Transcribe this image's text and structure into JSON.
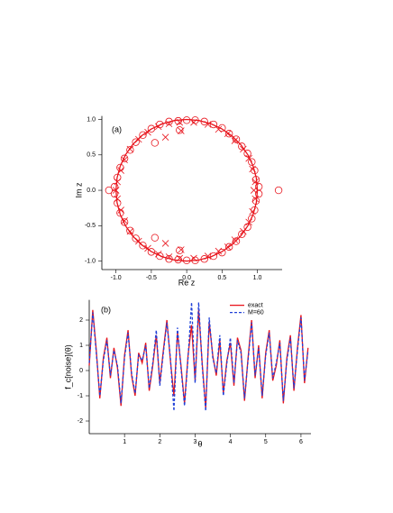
{
  "chart_data": [
    {
      "type": "scatter",
      "panel_label": "(a)",
      "x_label": "Re z",
      "y_label": "Im z",
      "xlim": [
        -1.2,
        1.35
      ],
      "ylim": [
        -1.12,
        1.05
      ],
      "xticks": [
        {
          "value": -1.0,
          "label": "-1.0"
        },
        -0.5,
        {
          "value": 0.0,
          "label": "0.0"
        },
        0.5,
        {
          "value": 1.0,
          "label": "1.0"
        }
      ],
      "yticks": [
        {
          "value": -1.0,
          "label": "-1.0"
        },
        -0.5,
        {
          "value": 0.0,
          "label": "0.0"
        },
        0.5,
        {
          "value": 1.0,
          "label": "1.0"
        }
      ],
      "series": [
        {
          "marker": "circle",
          "color": "#e8141c",
          "x": [
            0.0,
            0.12,
            0.25,
            0.38,
            0.5,
            0.6,
            0.7,
            0.78,
            0.86,
            0.92,
            0.96,
            0.98,
            1.02,
            -0.12,
            -0.25,
            -0.38,
            -0.5,
            -0.62,
            -0.72,
            -0.8,
            -0.88,
            -0.94,
            -0.98,
            -1.02,
            -0.45,
            -0.1,
            1.3,
            -1.1,
            0.0,
            0.12,
            0.25,
            0.38,
            0.5,
            0.6,
            0.7,
            0.78,
            0.86,
            0.92,
            0.96,
            0.98,
            1.02,
            -0.12,
            -0.25,
            -0.38,
            -0.5,
            -0.62,
            -0.72,
            -0.8,
            -0.88,
            -0.94,
            -0.98,
            -1.02,
            -0.45,
            -0.1
          ],
          "y": [
            0.99,
            0.99,
            0.97,
            0.93,
            0.88,
            0.8,
            0.72,
            0.62,
            0.52,
            0.4,
            0.28,
            0.15,
            0.05,
            0.98,
            0.97,
            0.93,
            0.87,
            0.78,
            0.68,
            0.57,
            0.45,
            0.32,
            0.18,
            0.05,
            0.67,
            0.85,
            0.0,
            0.0,
            -0.99,
            -0.99,
            -0.97,
            -0.93,
            -0.88,
            -0.8,
            -0.72,
            -0.62,
            -0.52,
            -0.4,
            -0.28,
            -0.15,
            -0.05,
            -0.98,
            -0.97,
            -0.93,
            -0.87,
            -0.78,
            -0.68,
            -0.57,
            -0.45,
            -0.32,
            -0.18,
            -0.05,
            -0.67,
            -0.85
          ]
        },
        {
          "marker": "cross",
          "color": "#e8141c",
          "x": [
            0.1,
            0.3,
            0.45,
            0.58,
            0.68,
            0.8,
            0.88,
            0.93,
            0.97,
            -0.1,
            -0.25,
            -0.4,
            -0.55,
            -0.68,
            -0.8,
            -0.88,
            -0.93,
            -0.98,
            -0.3,
            -0.08,
            0.95,
            -1.0,
            0.1,
            0.3,
            0.45,
            0.58,
            0.68,
            0.8,
            0.88,
            0.93,
            0.97,
            -0.1,
            -0.25,
            -0.4,
            -0.55,
            -0.68,
            -0.8,
            -0.88,
            -0.93,
            -0.98,
            -0.3,
            -0.08
          ],
          "y": [
            0.96,
            0.93,
            0.86,
            0.8,
            0.7,
            0.58,
            0.45,
            0.3,
            0.12,
            0.96,
            0.94,
            0.9,
            0.82,
            0.72,
            0.58,
            0.43,
            0.28,
            0.12,
            0.75,
            0.84,
            0.0,
            0.0,
            -0.96,
            -0.93,
            -0.86,
            -0.8,
            -0.7,
            -0.58,
            -0.45,
            -0.3,
            -0.12,
            -0.96,
            -0.94,
            -0.9,
            -0.82,
            -0.72,
            -0.58,
            -0.43,
            -0.28,
            -0.12,
            -0.75,
            -0.84
          ]
        },
        {
          "marker": "line",
          "color": "#e8141c",
          "x": [
            1,
            0.985,
            0.94,
            0.866,
            0.766,
            0.643,
            0.5,
            0.342,
            0.174,
            0,
            -0.174,
            -0.342,
            -0.5,
            -0.643,
            -0.766,
            -0.866,
            -0.94,
            -0.985,
            -1,
            -0.985,
            -0.94,
            -0.866,
            -0.766,
            -0.643,
            -0.5,
            -0.342,
            -0.174,
            0,
            0.174,
            0.342,
            0.5,
            0.643,
            0.766,
            0.866,
            0.94,
            0.985,
            1
          ],
          "y": [
            0,
            0.174,
            0.342,
            0.5,
            0.643,
            0.766,
            0.866,
            0.94,
            0.985,
            1,
            0.985,
            0.94,
            0.866,
            0.766,
            0.643,
            0.5,
            0.342,
            0.174,
            0,
            -0.174,
            -0.342,
            -0.5,
            -0.643,
            -0.766,
            -0.866,
            -0.94,
            -0.985,
            -1,
            -0.985,
            -0.94,
            -0.866,
            -0.766,
            -0.643,
            -0.5,
            -0.342,
            -0.174,
            0
          ]
        }
      ]
    },
    {
      "type": "line",
      "panel_label": "(b)",
      "x_label": "θ",
      "y_label": "f_c[noise](θ)",
      "xlim": [
        0,
        6.283
      ],
      "ylim": [
        -2.5,
        2.8
      ],
      "xticks": [
        1,
        2,
        3,
        4,
        5,
        6
      ],
      "yticks": [
        -2,
        -1,
        0,
        1,
        2
      ],
      "legend": "upper right",
      "x": [
        0,
        0.1,
        0.2,
        0.3,
        0.4,
        0.5,
        0.6,
        0.7,
        0.8,
        0.9,
        1.0,
        1.1,
        1.2,
        1.3,
        1.4,
        1.5,
        1.6,
        1.7,
        1.8,
        1.9,
        2.0,
        2.1,
        2.2,
        2.3,
        2.4,
        2.5,
        2.6,
        2.7,
        2.8,
        2.9,
        3.0,
        3.1,
        3.2,
        3.3,
        3.4,
        3.5,
        3.6,
        3.7,
        3.8,
        3.9,
        4.0,
        4.1,
        4.2,
        4.3,
        4.4,
        4.5,
        4.6,
        4.7,
        4.8,
        4.9,
        5.0,
        5.1,
        5.2,
        5.3,
        5.4,
        5.5,
        5.6,
        5.7,
        5.8,
        5.9,
        6.0,
        6.1,
        6.2
      ],
      "series": [
        {
          "name": "exact",
          "color": "#e8141c",
          "dash": false,
          "values": [
            0.2,
            2.4,
            0.8,
            -1.1,
            0.5,
            1.3,
            -0.3,
            0.9,
            0.1,
            -1.4,
            0.6,
            1.6,
            -0.2,
            -1.0,
            0.7,
            0.3,
            1.1,
            -0.8,
            0.2,
            1.4,
            -0.5,
            0.8,
            2.0,
            0.4,
            -1.0,
            1.5,
            0.2,
            -1.3,
            0.6,
            1.8,
            -0.4,
            2.4,
            0.3,
            -1.5,
            1.9,
            0.6,
            -0.2,
            1.2,
            -0.9,
            0.4,
            1.1,
            -0.6,
            1.3,
            0.8,
            -1.2,
            0.5,
            2.0,
            -0.3,
            1.0,
            -1.1,
            0.7,
            1.6,
            -0.4,
            0.2,
            1.2,
            -1.3,
            0.5,
            1.4,
            -0.8,
            0.9,
            2.2,
            -0.5,
            0.9
          ]
        },
        {
          "name": "M=60",
          "color": "#2040d8",
          "dash": true,
          "values": [
            0.3,
            2.3,
            0.7,
            -1.0,
            0.4,
            1.2,
            -0.2,
            0.8,
            0.2,
            -1.3,
            0.5,
            1.5,
            -0.1,
            -0.9,
            0.6,
            0.4,
            1.0,
            -0.7,
            0.3,
            1.6,
            -0.6,
            0.7,
            1.9,
            0.5,
            -1.6,
            1.7,
            0.1,
            -1.4,
            0.5,
            2.7,
            -0.5,
            2.7,
            0.2,
            -1.6,
            2.1,
            0.5,
            -0.1,
            1.4,
            -1.0,
            0.3,
            1.3,
            -0.5,
            1.2,
            0.7,
            -1.1,
            0.4,
            1.9,
            -0.2,
            0.9,
            -1.0,
            0.6,
            1.5,
            -0.3,
            0.3,
            1.1,
            -1.2,
            0.4,
            1.3,
            -0.7,
            0.8,
            2.1,
            -0.4,
            0.8
          ]
        }
      ]
    }
  ]
}
